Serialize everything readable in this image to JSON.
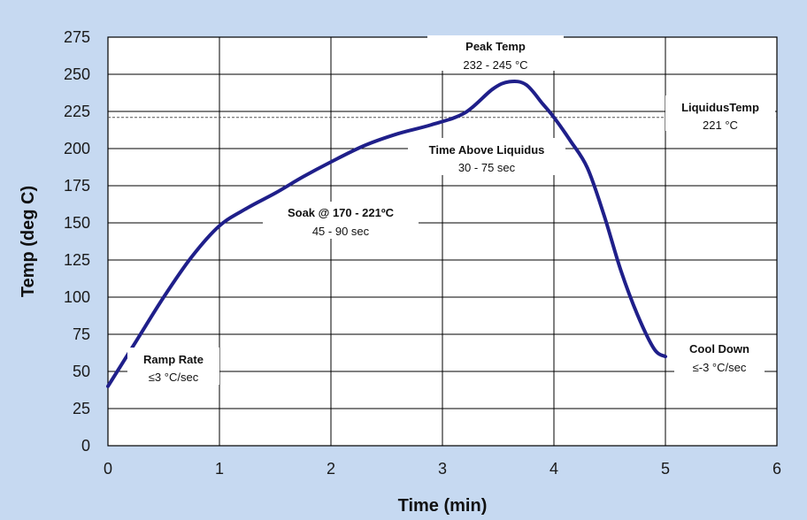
{
  "chart_data": {
    "type": "line",
    "xlabel": "Time (min)",
    "ylabel": "Temp (deg C)",
    "xlim": [
      0,
      6
    ],
    "ylim": [
      0,
      275
    ],
    "x_ticks": [
      0,
      1,
      2,
      3,
      4,
      5,
      6
    ],
    "y_ticks": [
      0,
      25,
      50,
      75,
      100,
      125,
      150,
      175,
      200,
      225,
      250,
      275
    ],
    "grid": true,
    "legend": "none",
    "series": [
      {
        "color": "#1f1f8a",
        "x": [
          0,
          0.25,
          0.5,
          0.75,
          1.0,
          1.25,
          1.5,
          1.75,
          2.0,
          2.3,
          2.6,
          2.9,
          3.2,
          3.45,
          3.6,
          3.75,
          3.9,
          4.0,
          4.15,
          4.3,
          4.45,
          4.6,
          4.75,
          4.9,
          5.0
        ],
        "y": [
          40,
          70,
          100,
          127,
          148,
          160,
          170,
          181,
          191,
          202,
          210,
          216,
          224,
          240,
          245,
          243,
          230,
          221,
          205,
          187,
          155,
          118,
          88,
          65,
          60
        ]
      }
    ],
    "reference_line": {
      "y": 221,
      "style": "dashed"
    },
    "annotations": [
      {
        "id": "peak",
        "lines": [
          "Peak Temp",
          "232 - 245 °C"
        ]
      },
      {
        "id": "liquidus",
        "lines": [
          "LiquidusTemp",
          "221 °C"
        ]
      },
      {
        "id": "tal",
        "lines": [
          "Time Above Liquidus",
          "30 - 75 sec"
        ]
      },
      {
        "id": "soak",
        "lines": [
          "Soak @ 170 - 221ºC",
          "45 - 90 sec"
        ]
      },
      {
        "id": "ramp",
        "lines": [
          "Ramp Rate",
          "≤3 °C/sec"
        ]
      },
      {
        "id": "cool",
        "lines": [
          "Cool Down",
          "≤-3 °C/sec"
        ]
      }
    ]
  }
}
